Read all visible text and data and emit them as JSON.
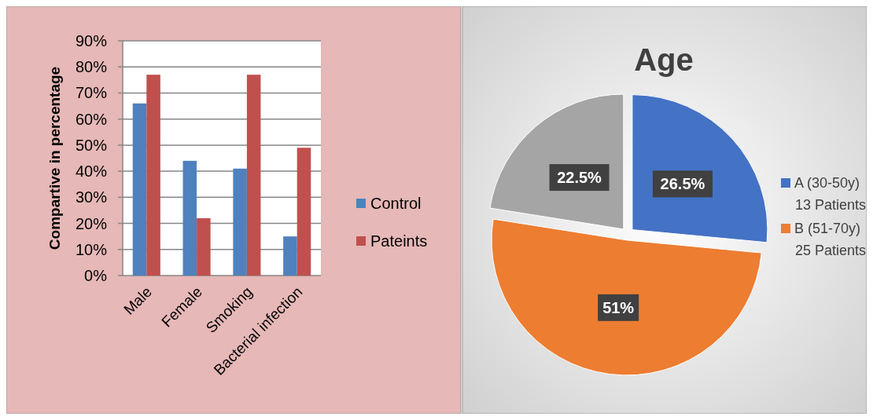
{
  "chart_data": [
    {
      "type": "bar",
      "ylabel": "Compartive in percentage",
      "categories": [
        "Male",
        "Female",
        "Smoking",
        "Bacterial infection"
      ],
      "series": [
        {
          "name": "Control",
          "color": "#4f81bd",
          "values": [
            66,
            44,
            41,
            15
          ]
        },
        {
          "name": "Pateints",
          "color": "#c0504d",
          "values": [
            77,
            22,
            77,
            49
          ]
        }
      ],
      "ylim": [
        0,
        90
      ],
      "yticks": [
        {
          "value": 0,
          "label": "0%"
        },
        {
          "value": 10,
          "label": "10%"
        },
        {
          "value": 20,
          "label": "20%"
        },
        {
          "value": 30,
          "label": "30%"
        },
        {
          "value": 40,
          "label": "40%"
        },
        {
          "value": 50,
          "label": "50%"
        },
        {
          "value": 60,
          "label": "60%"
        },
        {
          "value": 70,
          "label": "70%"
        },
        {
          "value": 80,
          "label": "80%"
        },
        {
          "value": 90,
          "label": "90%"
        }
      ],
      "grid": "y",
      "legend": "right"
    },
    {
      "type": "pie",
      "title": "Age",
      "categories": [
        "A (30-50y) 13 Patients",
        "B (51-70y) 25 Patients",
        null
      ],
      "values": [
        26.5,
        51,
        22.5
      ],
      "colors": [
        "#4472c4",
        "#ed7d31",
        "#a5a5a5"
      ],
      "value_labels": [
        "26.5%",
        "51%",
        "22.5%"
      ],
      "legend": "right"
    }
  ]
}
